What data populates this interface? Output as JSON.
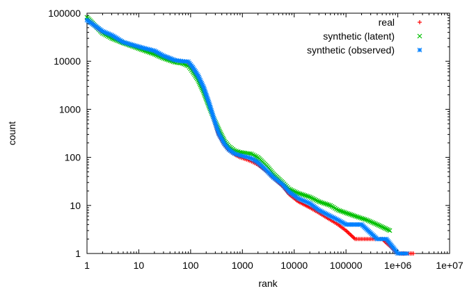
{
  "chart_data": {
    "type": "scatter",
    "xlabel": "rank",
    "ylabel": "count",
    "xscale": "log",
    "yscale": "log",
    "xlim": [
      1,
      10000000
    ],
    "ylim": [
      1,
      100000
    ],
    "x_ticks": [
      "1",
      "10",
      "100",
      "1000",
      "10000",
      "100000",
      "1e+06",
      "1e+07"
    ],
    "y_ticks": [
      "1",
      "10",
      "100",
      "1000",
      "10000",
      "100000"
    ],
    "grid": false,
    "legend_position": "top-right",
    "series": [
      {
        "name": "real",
        "marker": "+",
        "color": "#ff0000",
        "points": [
          [
            1,
            75000
          ],
          [
            2,
            40000
          ],
          [
            3,
            33000
          ],
          [
            5,
            25000
          ],
          [
            8,
            21000
          ],
          [
            12,
            18500
          ],
          [
            20,
            15500
          ],
          [
            30,
            12500
          ],
          [
            50,
            10500
          ],
          [
            70,
            10000
          ],
          [
            90,
            9500
          ],
          [
            110,
            7000
          ],
          [
            140,
            4500
          ],
          [
            180,
            2500
          ],
          [
            230,
            1200
          ],
          [
            280,
            600
          ],
          [
            350,
            300
          ],
          [
            450,
            180
          ],
          [
            550,
            140
          ],
          [
            700,
            115
          ],
          [
            900,
            100
          ],
          [
            1200,
            90
          ],
          [
            1500,
            82
          ],
          [
            2000,
            70
          ],
          [
            3000,
            50
          ],
          [
            4000,
            37
          ],
          [
            6000,
            25
          ],
          [
            8000,
            17
          ],
          [
            12000,
            12
          ],
          [
            20000,
            9
          ],
          [
            30000,
            7
          ],
          [
            50000,
            5
          ],
          [
            70000,
            4
          ],
          [
            100000,
            3
          ],
          [
            150000,
            2
          ],
          [
            300000,
            2
          ],
          [
            500000,
            2
          ],
          [
            1000000,
            1
          ],
          [
            2000000,
            1
          ]
        ]
      },
      {
        "name": "synthetic (latent)",
        "marker": "x",
        "color": "#00c000",
        "points": [
          [
            1,
            82000
          ],
          [
            2,
            38000
          ],
          [
            3,
            30000
          ],
          [
            5,
            24000
          ],
          [
            8,
            20000
          ],
          [
            12,
            17000
          ],
          [
            20,
            14000
          ],
          [
            30,
            11500
          ],
          [
            50,
            9500
          ],
          [
            70,
            9000
          ],
          [
            90,
            8000
          ],
          [
            110,
            6000
          ],
          [
            140,
            4000
          ],
          [
            180,
            2200
          ],
          [
            230,
            1100
          ],
          [
            280,
            650
          ],
          [
            350,
            380
          ],
          [
            450,
            220
          ],
          [
            550,
            170
          ],
          [
            700,
            140
          ],
          [
            900,
            128
          ],
          [
            1200,
            122
          ],
          [
            1500,
            118
          ],
          [
            2000,
            100
          ],
          [
            3000,
            65
          ],
          [
            4000,
            45
          ],
          [
            6000,
            30
          ],
          [
            8000,
            22
          ],
          [
            12000,
            18
          ],
          [
            20000,
            15
          ],
          [
            30000,
            12
          ],
          [
            50000,
            10
          ],
          [
            70000,
            8
          ],
          [
            100000,
            7
          ],
          [
            150000,
            6
          ],
          [
            250000,
            5
          ],
          [
            400000,
            4
          ],
          [
            700000,
            3
          ]
        ]
      },
      {
        "name": "synthetic (observed)",
        "marker": "*",
        "color": "#0080ff",
        "points": [
          [
            1,
            72000
          ],
          [
            2,
            42000
          ],
          [
            3,
            35000
          ],
          [
            5,
            25000
          ],
          [
            8,
            21500
          ],
          [
            12,
            19000
          ],
          [
            20,
            16500
          ],
          [
            30,
            13000
          ],
          [
            50,
            10500
          ],
          [
            70,
            10000
          ],
          [
            90,
            9800
          ],
          [
            110,
            7500
          ],
          [
            140,
            5000
          ],
          [
            180,
            2800
          ],
          [
            230,
            1300
          ],
          [
            280,
            650
          ],
          [
            350,
            310
          ],
          [
            450,
            190
          ],
          [
            550,
            145
          ],
          [
            700,
            120
          ],
          [
            900,
            110
          ],
          [
            1200,
            102
          ],
          [
            1500,
            95
          ],
          [
            2000,
            78
          ],
          [
            3000,
            52
          ],
          [
            4000,
            38
          ],
          [
            6000,
            27
          ],
          [
            8000,
            19
          ],
          [
            12000,
            14
          ],
          [
            20000,
            11
          ],
          [
            30000,
            8
          ],
          [
            50000,
            6
          ],
          [
            70000,
            5
          ],
          [
            100000,
            4
          ],
          [
            200000,
            4
          ],
          [
            400000,
            2
          ],
          [
            600000,
            2
          ],
          [
            1000000,
            1
          ],
          [
            1500000,
            1
          ]
        ]
      }
    ]
  }
}
